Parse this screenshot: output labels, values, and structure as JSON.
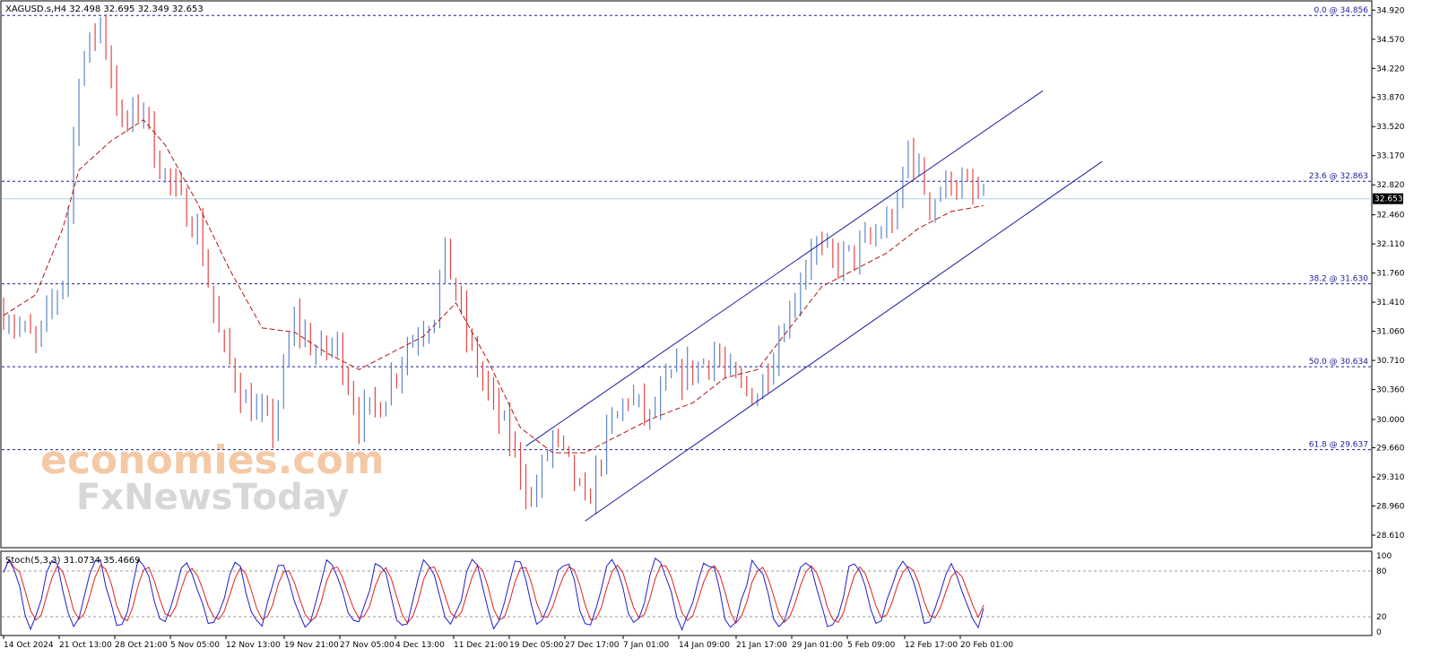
{
  "chart_data": {
    "type": "candlestick",
    "symbol_header": "XAGUSD.s,H4  32.498 32.695 32.349 32.653",
    "current_price": "32.653",
    "ylim": [
      28.47,
      35.02
    ],
    "price_ticks": [
      "34.920",
      "34.570",
      "34.220",
      "33.870",
      "33.520",
      "33.170",
      "32.820",
      "32.460",
      "32.110",
      "31.760",
      "31.410",
      "31.060",
      "30.710",
      "30.360",
      "30.000",
      "29.660",
      "29.310",
      "28.960",
      "28.610"
    ],
    "fib_levels": [
      {
        "label": "0.0 @ 34.856",
        "value": 34.856
      },
      {
        "label": "23.6 @ 32.863",
        "value": 32.863
      },
      {
        "label": "38.2 @ 31.630",
        "value": 31.63
      },
      {
        "label": "50.0 @ 30.634",
        "value": 30.634
      },
      {
        "label": "61.8 @ 29.637",
        "value": 29.637
      }
    ],
    "x_labels": [
      "14 Oct 2024",
      "21 Oct 13:00",
      "28 Oct 21:00",
      "5 Nov 05:00",
      "12 Nov 13:00",
      "19 Nov 21:00",
      "27 Nov 05:00",
      "4 Dec 13:00",
      "11 Dec 21:00",
      "19 Dec 05:00",
      "27 Dec 17:00",
      "7 Jan 01:00",
      "14 Jan 09:00",
      "21 Jan 17:00",
      "29 Jan 01:00",
      "5 Feb 09:00",
      "12 Feb 17:00",
      "20 Feb 01:00"
    ],
    "close_path": [
      [
        0,
        31.3
      ],
      [
        6,
        30.9
      ],
      [
        11,
        31.7
      ],
      [
        14,
        34.2
      ],
      [
        18,
        34.8
      ],
      [
        22,
        33.5
      ],
      [
        26,
        33.8
      ],
      [
        28,
        33.2
      ],
      [
        32,
        32.7
      ],
      [
        36,
        32.3
      ],
      [
        40,
        31.0
      ],
      [
        45,
        30.2
      ],
      [
        50,
        29.9
      ],
      [
        54,
        31.2
      ],
      [
        58,
        30.8
      ],
      [
        62,
        30.9
      ],
      [
        66,
        30.0
      ],
      [
        70,
        30.2
      ],
      [
        75,
        30.9
      ],
      [
        80,
        31.3
      ],
      [
        82,
        32.0
      ],
      [
        86,
        31.0
      ],
      [
        90,
        30.3
      ],
      [
        95,
        29.6
      ],
      [
        98,
        29.0
      ],
      [
        102,
        29.8
      ],
      [
        106,
        29.3
      ],
      [
        108,
        28.9
      ],
      [
        112,
        29.8
      ],
      [
        116,
        30.3
      ],
      [
        120,
        30.0
      ],
      [
        124,
        30.5
      ],
      [
        128,
        30.6
      ],
      [
        132,
        30.8
      ],
      [
        136,
        30.4
      ],
      [
        140,
        30.3
      ],
      [
        144,
        31.0
      ],
      [
        146,
        31.3
      ],
      [
        150,
        32.1
      ],
      [
        154,
        31.9
      ],
      [
        158,
        32.0
      ],
      [
        162,
        32.2
      ],
      [
        166,
        32.5
      ],
      [
        168,
        33.3
      ],
      [
        172,
        32.6
      ],
      [
        176,
        32.9
      ],
      [
        180,
        32.7
      ],
      [
        182,
        32.653
      ]
    ],
    "ma_path": [
      [
        0,
        31.25
      ],
      [
        6,
        31.5
      ],
      [
        11,
        32.3
      ],
      [
        14,
        33.0
      ],
      [
        20,
        33.35
      ],
      [
        26,
        33.6
      ],
      [
        30,
        33.3
      ],
      [
        36,
        32.6
      ],
      [
        42,
        31.8
      ],
      [
        48,
        31.1
      ],
      [
        54,
        31.05
      ],
      [
        60,
        30.8
      ],
      [
        66,
        30.6
      ],
      [
        72,
        30.8
      ],
      [
        78,
        31.0
      ],
      [
        84,
        31.4
      ],
      [
        90,
        30.7
      ],
      [
        96,
        29.9
      ],
      [
        102,
        29.6
      ],
      [
        108,
        29.6
      ],
      [
        114,
        29.8
      ],
      [
        120,
        30.0
      ],
      [
        128,
        30.2
      ],
      [
        134,
        30.5
      ],
      [
        140,
        30.6
      ],
      [
        146,
        31.1
      ],
      [
        152,
        31.6
      ],
      [
        158,
        31.8
      ],
      [
        164,
        32.0
      ],
      [
        170,
        32.3
      ],
      [
        176,
        32.5
      ],
      [
        182,
        32.57
      ]
    ],
    "channel_upper": [
      [
        97,
        29.68
      ],
      [
        193,
        33.95
      ]
    ],
    "channel_lower": [
      [
        108,
        28.78
      ],
      [
        204,
        33.1
      ]
    ],
    "stochastic": {
      "label": "Stoch(5,3,3) 31.0734 35.4669",
      "main": 31.0734,
      "signal": 35.4669,
      "levels": [
        80,
        20
      ],
      "axis_labels": [
        "100",
        "80",
        "20",
        "0"
      ]
    },
    "colors": {
      "bull": "#5b86c9",
      "bear": "#e64545",
      "ma": "#b01818",
      "fib": "#1c1c9c",
      "channel": "#1c1c9c",
      "current": "#a9d5e9",
      "stoch_main": "#1f1fcc",
      "stoch_signal": "#e02020"
    }
  },
  "watermark": {
    "line1": "economies.com",
    "line2": "FxNewsToday"
  }
}
